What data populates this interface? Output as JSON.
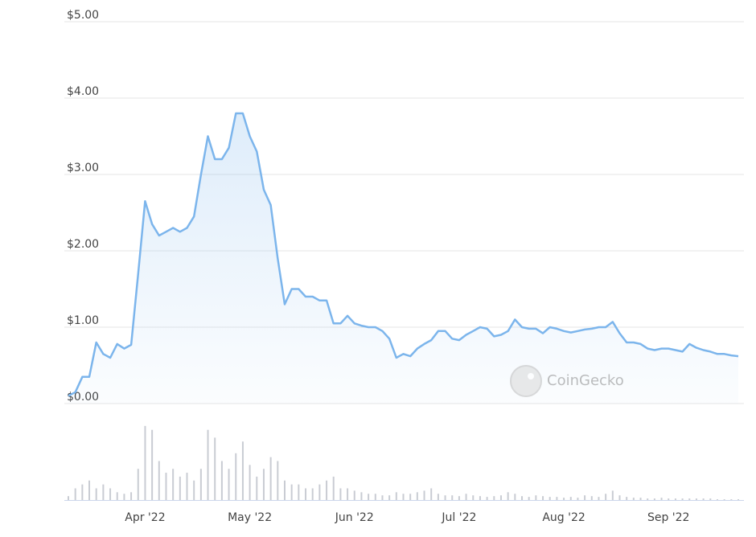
{
  "chart_data": {
    "type": "line",
    "categories": [
      null,
      null,
      null,
      null,
      null,
      null,
      null,
      null,
      null,
      null,
      null,
      "Apr '22",
      null,
      null,
      null,
      null,
      null,
      null,
      null,
      null,
      null,
      null,
      null,
      null,
      null,
      null,
      "May '22",
      null,
      null,
      null,
      null,
      null,
      null,
      null,
      null,
      null,
      null,
      null,
      null,
      null,
      null,
      "Jun '22",
      null,
      null,
      null,
      null,
      null,
      null,
      null,
      null,
      null,
      null,
      null,
      null,
      null,
      null,
      "Jul '22",
      null,
      null,
      null,
      null,
      null,
      null,
      null,
      null,
      null,
      null,
      null,
      null,
      null,
      null,
      "Aug '22",
      null,
      null,
      null,
      null,
      null,
      null,
      null,
      null,
      null,
      null,
      null,
      null,
      null,
      null,
      "Sep '22",
      null,
      null,
      null,
      null,
      null,
      null,
      null,
      null,
      null,
      null
    ],
    "series": [
      {
        "name": "Price",
        "color": "#7cb5ec",
        "values": [
          0.1,
          0.15,
          0.35,
          0.35,
          0.8,
          0.65,
          0.6,
          0.78,
          0.72,
          0.77,
          1.7,
          2.65,
          2.35,
          2.2,
          2.25,
          2.3,
          2.25,
          2.3,
          2.45,
          3.0,
          3.5,
          3.2,
          3.2,
          3.35,
          3.8,
          3.8,
          3.5,
          3.3,
          2.8,
          2.6,
          1.9,
          1.3,
          1.5,
          1.5,
          1.4,
          1.4,
          1.35,
          1.35,
          1.05,
          1.05,
          1.15,
          1.05,
          1.02,
          1.0,
          1.0,
          0.95,
          0.85,
          0.6,
          0.65,
          0.62,
          0.72,
          0.78,
          0.83,
          0.95,
          0.95,
          0.85,
          0.83,
          0.9,
          0.95,
          1.0,
          0.98,
          0.88,
          0.9,
          0.95,
          1.1,
          1.0,
          0.98,
          0.98,
          0.92,
          1.0,
          0.98,
          0.95,
          0.93,
          0.95,
          0.97,
          0.98,
          1.0,
          1.0,
          1.07,
          0.92,
          0.8,
          0.8,
          0.78,
          0.72,
          0.7,
          0.72,
          0.72,
          0.7,
          0.68,
          0.78,
          0.73,
          0.7,
          0.68,
          0.65,
          0.65,
          0.63,
          0.62
        ]
      },
      {
        "name": "Volume",
        "color": "#c9ccd3",
        "axis": "y2",
        "values": [
          5,
          15,
          20,
          25,
          15,
          20,
          15,
          10,
          8,
          10,
          40,
          95,
          90,
          50,
          35,
          40,
          30,
          35,
          25,
          40,
          90,
          80,
          50,
          40,
          60,
          75,
          45,
          30,
          40,
          55,
          50,
          25,
          20,
          20,
          15,
          15,
          20,
          25,
          30,
          15,
          15,
          12,
          10,
          8,
          8,
          6,
          6,
          10,
          8,
          8,
          10,
          12,
          15,
          8,
          6,
          6,
          5,
          8,
          6,
          5,
          4,
          5,
          6,
          10,
          8,
          5,
          4,
          6,
          5,
          4,
          4,
          3,
          4,
          3,
          6,
          5,
          4,
          8,
          12,
          6,
          4,
          3,
          3,
          2,
          2,
          3,
          2,
          2,
          2,
          2,
          2,
          2,
          2,
          1,
          1,
          1,
          1
        ]
      }
    ],
    "ylim": [
      0,
      5
    ],
    "yticks": [
      {
        "value": 0,
        "label": "$0.00"
      },
      {
        "value": 1,
        "label": "$1.00"
      },
      {
        "value": 2,
        "label": "$2.00"
      },
      {
        "value": 3,
        "label": "$3.00"
      },
      {
        "value": 4,
        "label": "$4.00"
      },
      {
        "value": 5,
        "label": "$5.00"
      }
    ],
    "y2lim": [
      0,
      100
    ],
    "grid": true,
    "watermark": "CoinGecko"
  }
}
